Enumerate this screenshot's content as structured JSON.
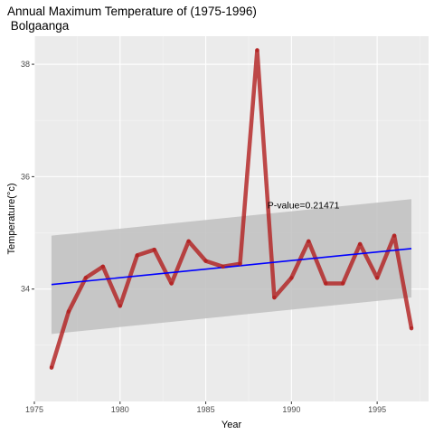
{
  "chart_data": {
    "type": "line",
    "title_line1": "Annual Maximum Temperature of (1975-1996)",
    "title_line2": " Bolgaanga",
    "xlabel": "Year",
    "ylabel": "Temperature(°c)",
    "xlim": [
      1975.0,
      1998.0
    ],
    "ylim": [
      32.0,
      38.5
    ],
    "x_ticks": [
      1975,
      1980,
      1985,
      1990,
      1995
    ],
    "y_ticks": [
      34,
      36,
      38
    ],
    "grid": true,
    "series": [
      {
        "x": [
          1976,
          1977,
          1978,
          1979,
          1980,
          1981,
          1982,
          1983,
          1984,
          1985,
          1986,
          1987,
          1988,
          1989,
          1990,
          1991,
          1992,
          1993,
          1994,
          1995,
          1996,
          1997
        ],
        "values": [
          32.6,
          33.6,
          34.2,
          34.4,
          33.7,
          34.6,
          34.7,
          34.1,
          34.85,
          34.5,
          34.4,
          34.45,
          38.25,
          33.85,
          34.2,
          34.85,
          34.1,
          34.1,
          34.8,
          34.2,
          34.95,
          33.3
        ],
        "color": "#b22222"
      }
    ],
    "trend": {
      "x": [
        1976,
        1997
      ],
      "values": [
        34.08,
        34.72
      ],
      "ci_lower": [
        33.2,
        33.85
      ],
      "ci_upper": [
        34.95,
        35.6
      ],
      "color": "#0000ff",
      "ci_color": "#c0c0c0"
    },
    "annotation": {
      "text": "P-value=0.21471",
      "x": 1988.6,
      "y": 35.5
    }
  }
}
